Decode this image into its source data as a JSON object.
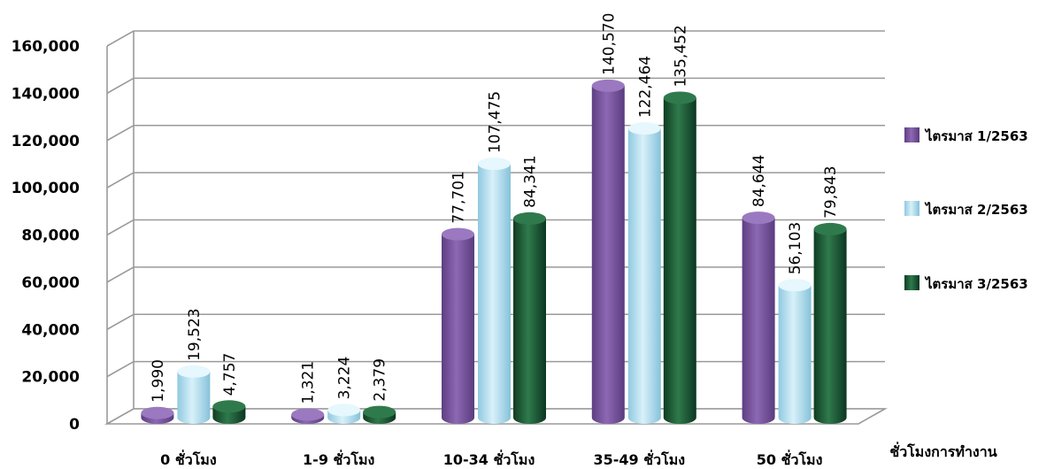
{
  "chart_data": {
    "type": "bar",
    "style": "3d-cylinder",
    "categories": [
      "0 ชั่วโมง",
      "1-9 ชั่วโมง",
      "10-34 ชั่วโมง",
      "35-49 ชั่วโมง",
      "50 ชั่วโมง"
    ],
    "series": [
      {
        "name": "ไตรมาส 1/2563",
        "color": "#7b57a0",
        "values": [
          1990,
          1321,
          77701,
          140570,
          84644
        ],
        "labels": [
          "1,990",
          "1,321",
          "77,701",
          "140,570",
          "84,644"
        ]
      },
      {
        "name": "ไตรมาส 2/2563",
        "color": "#a9dcef",
        "values": [
          19523,
          3224,
          107475,
          122464,
          56103
        ],
        "labels": [
          "19,523",
          "3,224",
          "107,475",
          "122,464",
          "56,103"
        ]
      },
      {
        "name": "ไตรมาส 3/2563",
        "color": "#1e5a36",
        "values": [
          4757,
          2379,
          84341,
          135452,
          79843
        ],
        "labels": [
          "4,757",
          "2,379",
          "84,341",
          "135,452",
          "79,843"
        ]
      }
    ],
    "yticks": [
      "0",
      "20,000",
      "40,000",
      "60,000",
      "80,000",
      "100,000",
      "120,000",
      "140,000",
      "160,000"
    ],
    "ylim": [
      0,
      160000
    ],
    "xlabel": "ชั่วโมงการทำงาน",
    "ylabel": "",
    "title": "",
    "grid": true,
    "legend_position": "right"
  }
}
